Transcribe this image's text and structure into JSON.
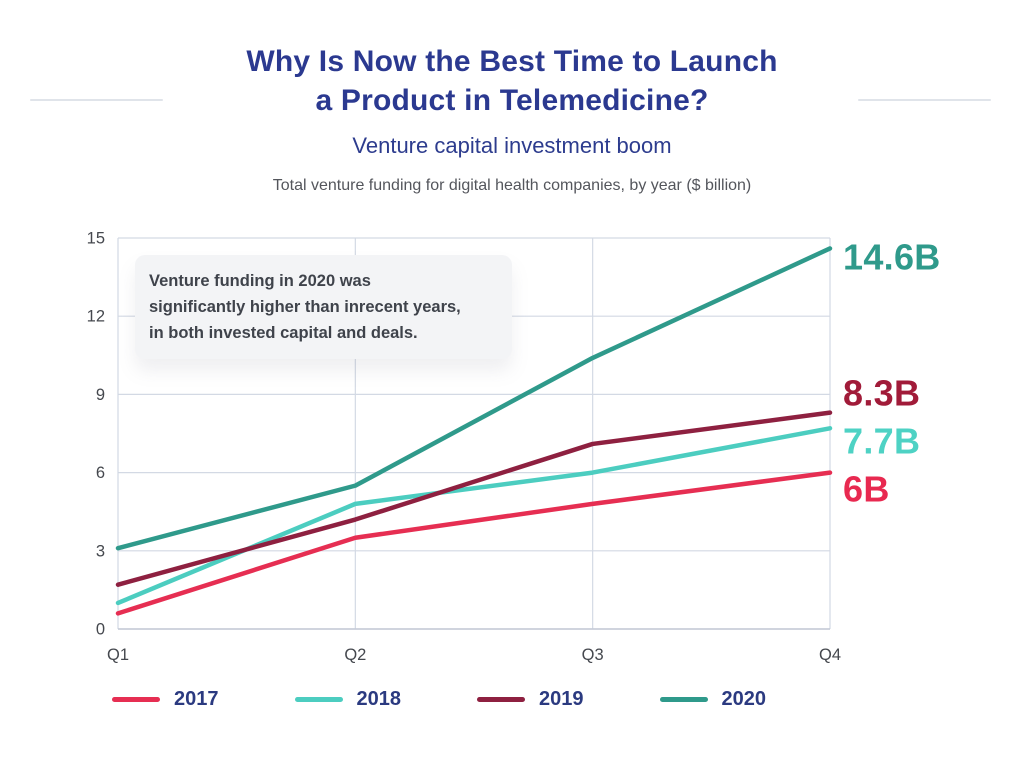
{
  "header": {
    "title_lines": [
      "Why Is Now the Best Time to Launch",
      "a Product in Telemedicine?"
    ],
    "subtitle": "Venture capital investment boom",
    "description": "Total venture funding for digital health companies, by year ($ billion)"
  },
  "annotation": {
    "lines": [
      "Venture funding in 2020 was",
      "significantly higher than inrecent years,",
      "in both invested capital and deals."
    ]
  },
  "chart_data": {
    "type": "line",
    "title": "Total venture funding for digital health companies, by year ($ billion)",
    "categories": [
      "Q1",
      "Q2",
      "Q3",
      "Q4"
    ],
    "series": [
      {
        "name": "2017",
        "color": "#e62e52",
        "values": [
          0.6,
          3.5,
          4.8,
          6.0
        ],
        "end_label": "6B",
        "end_label_color": "#e82950"
      },
      {
        "name": "2018",
        "color": "#4ccdc0",
        "values": [
          1.0,
          4.8,
          6.0,
          7.7
        ],
        "end_label": "7.7B",
        "end_label_color": "#4ed2c4"
      },
      {
        "name": "2019",
        "color": "#8e2040",
        "values": [
          1.7,
          4.2,
          7.1,
          8.3
        ],
        "end_label": "8.3B",
        "end_label_color": "#a11b39"
      },
      {
        "name": "2020",
        "color": "#2f9a8b",
        "values": [
          3.1,
          5.5,
          10.4,
          14.6
        ],
        "end_label": "14.6B",
        "end_label_color": "#2f9a8b"
      }
    ],
    "xlabel": "",
    "ylabel": "",
    "ylim": [
      0,
      15
    ],
    "yticks": [
      0,
      3,
      6,
      9,
      12,
      15
    ],
    "grid": true,
    "legend_position": "bottom"
  },
  "colors": {
    "background": "#ffffff",
    "title_text": "#2b3990",
    "subtitle_text": "#2d3c8e",
    "description_text": "#54565c",
    "axis_text": "#45484e",
    "grid_line": "#d3d9e4",
    "axis_line": "#c3c9d6",
    "annotation_bg": "#f3f4f6",
    "annotation_text": "#3f434b",
    "legend_text": "#2b3a80",
    "divider_line": "#e0e4ea"
  }
}
